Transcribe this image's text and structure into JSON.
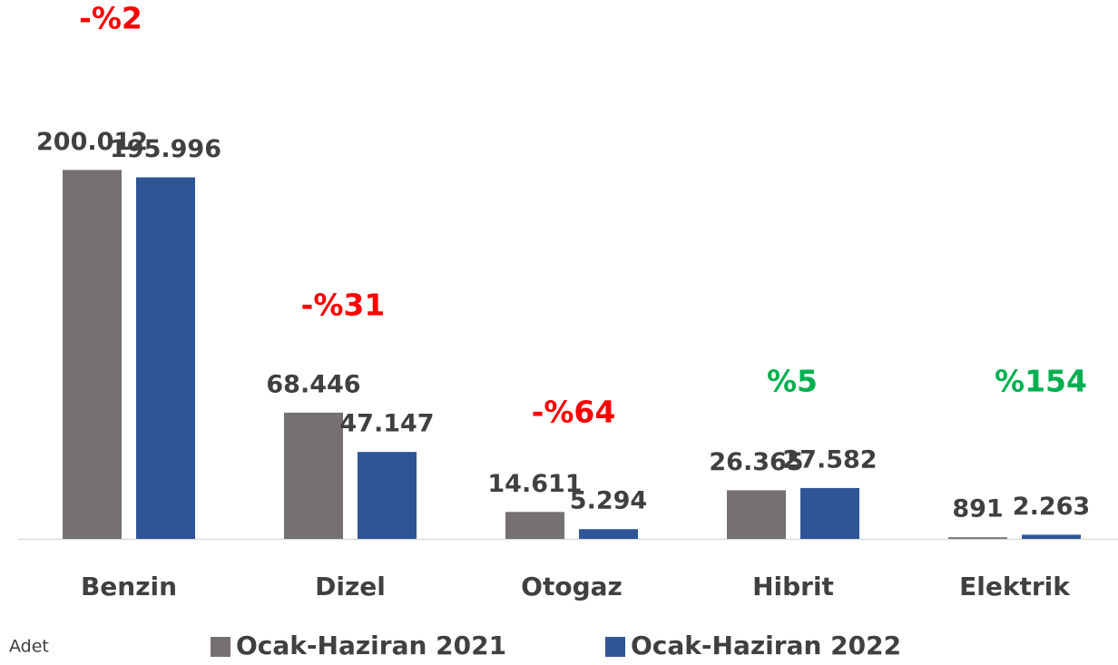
{
  "chart_data": {
    "type": "bar",
    "categories": [
      "Benzin",
      "Dizel",
      "Otogaz",
      "Hibrit",
      "Elektrik"
    ],
    "series": [
      {
        "name": "Ocak-Haziran 2021",
        "color": "#767171",
        "values": [
          200012,
          68446,
          14611,
          26365,
          891
        ],
        "value_labels": [
          "200.012",
          "68.446",
          "14.611",
          "26.365",
          "891"
        ]
      },
      {
        "name": "Ocak-Haziran 2022",
        "color": "#2f5597",
        "values": [
          195996,
          47147,
          5294,
          27582,
          2263
        ],
        "value_labels": [
          "195.996",
          "47.147",
          "5.294",
          "27.582",
          "2.263"
        ]
      }
    ],
    "annotations": [
      {
        "text": "-%2",
        "color": "#ff0000"
      },
      {
        "text": "-%31",
        "color": "#ff0000"
      },
      {
        "text": "-%64",
        "color": "#ff0000"
      },
      {
        "text": "%5",
        "color": "#00b050"
      },
      {
        "text": "%154",
        "color": "#00b050"
      }
    ],
    "unit_label": "Adet",
    "ylim": [
      0,
      240000
    ],
    "legend": "bottom"
  }
}
